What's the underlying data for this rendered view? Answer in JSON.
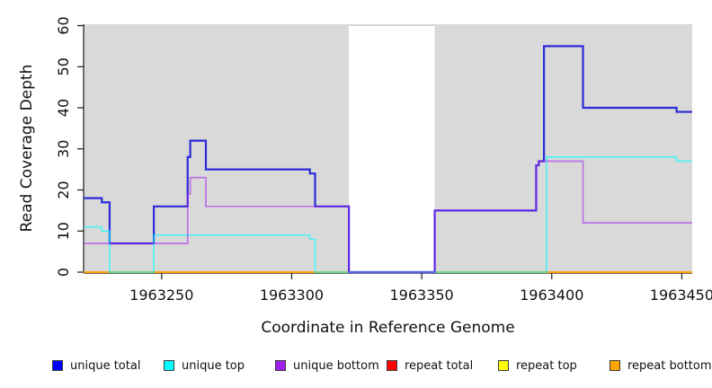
{
  "chart_data": {
    "type": "line",
    "subtype": "step-after",
    "title": "",
    "xlabel": "Coordinate in Reference Genome",
    "ylabel": "Read Coverage Depth",
    "xlim": [
      1963220,
      1963454
    ],
    "ylim": [
      0,
      60
    ],
    "x_ticks": [
      1963250,
      1963300,
      1963350,
      1963400,
      1963450
    ],
    "y_ticks": [
      0,
      10,
      20,
      30,
      40,
      50,
      60
    ],
    "grid": "off",
    "legend_position": "bottom",
    "plot_bg": "#d9d9d9",
    "highlight_band": {
      "from": 1963322,
      "to": 1963355,
      "color": "#ffffff"
    },
    "series": [
      {
        "key": "unique-total",
        "name": "unique total",
        "swatch": "#0000ff",
        "line": "#2b2bd8",
        "width": 2.2,
        "z": 4,
        "steps": [
          [
            1963220,
            18
          ],
          [
            1963227,
            17
          ],
          [
            1963230,
            7
          ],
          [
            1963247,
            16
          ],
          [
            1963260,
            28
          ],
          [
            1963261,
            32
          ],
          [
            1963267,
            25
          ],
          [
            1963307,
            24
          ],
          [
            1963309,
            16
          ],
          [
            1963322,
            0
          ],
          [
            1963355,
            15
          ],
          [
            1963394,
            26
          ],
          [
            1963395,
            27
          ],
          [
            1963397,
            55
          ],
          [
            1963412,
            40
          ],
          [
            1963448,
            39
          ]
        ]
      },
      {
        "key": "unique-top",
        "name": "unique top",
        "swatch": "#00ffff",
        "line": "rgba(0,255,255,0.62)",
        "width": 1.7,
        "z": 5,
        "steps": [
          [
            1963220,
            11
          ],
          [
            1963227,
            10
          ],
          [
            1963230,
            0
          ],
          [
            1963247,
            9
          ],
          [
            1963307,
            8
          ],
          [
            1963309,
            0
          ],
          [
            1963398,
            28
          ],
          [
            1963448,
            27
          ]
        ]
      },
      {
        "key": "unique-bottom",
        "name": "unique bottom",
        "swatch": "#a020f0",
        "line": "rgba(160,32,240,0.55)",
        "width": 1.7,
        "z": 6,
        "steps": [
          [
            1963220,
            7
          ],
          [
            1963260,
            19
          ],
          [
            1963261,
            23
          ],
          [
            1963267,
            16
          ],
          [
            1963322,
            0
          ],
          [
            1963355,
            15
          ],
          [
            1963394,
            26
          ],
          [
            1963395,
            27
          ],
          [
            1963412,
            12
          ]
        ]
      },
      {
        "key": "repeat-total",
        "name": "repeat total",
        "swatch": "#ff0000",
        "line": "#ff0000",
        "width": 1.5,
        "z": 1,
        "steps": [
          [
            1963220,
            0
          ]
        ]
      },
      {
        "key": "repeat-top",
        "name": "repeat top",
        "swatch": "#ffff00",
        "line": "#ffff00",
        "width": 1.5,
        "z": 2,
        "steps": [
          [
            1963220,
            0
          ]
        ]
      },
      {
        "key": "repeat-bottom",
        "name": "repeat bottom",
        "swatch": "#ffa500",
        "line": "#ffa500",
        "width": 1.7,
        "z": 3,
        "steps": [
          [
            1963220,
            0
          ]
        ]
      }
    ],
    "legend": [
      {
        "label": "unique total"
      },
      {
        "label": "unique top"
      },
      {
        "label": "unique bottom"
      },
      {
        "label": "repeat total"
      },
      {
        "label": "repeat top"
      },
      {
        "label": "repeat bottom"
      }
    ]
  }
}
